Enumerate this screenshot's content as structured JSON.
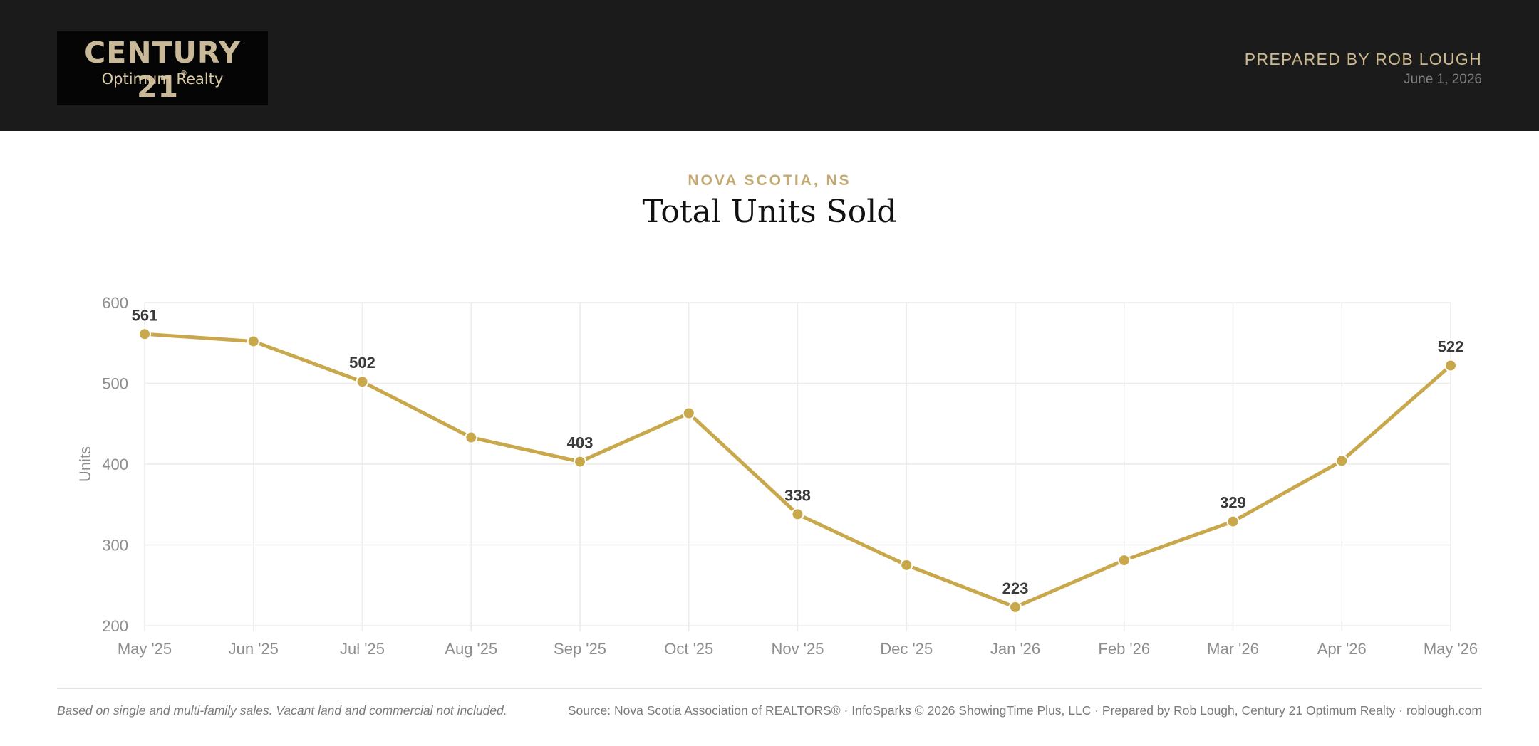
{
  "header": {
    "logo_brand": "CENTURY 21",
    "logo_reg": "®",
    "logo_sub": "Optimum Realty",
    "prepared_by": "PREPARED BY ROB LOUGH",
    "date": "June 1, 2026"
  },
  "region": "NOVA SCOTIA, NS",
  "title": "Total Units Sold",
  "colors": {
    "header_bg": "#1b1b1b",
    "accent": "#c9a84c",
    "gold_text": "#cdb98c"
  },
  "chart_data": {
    "type": "line",
    "title": "Total Units Sold",
    "ylabel": "Units",
    "xlabel": "",
    "ylim": [
      200,
      600
    ],
    "yticks": [
      "600",
      "500",
      "400",
      "300",
      "200"
    ],
    "grid": true,
    "categories": [
      "May '25",
      "Jun '25",
      "Jul '25",
      "Aug '25",
      "Sep '25",
      "Oct '25",
      "Nov '25",
      "Dec '25",
      "Jan '26",
      "Feb '26",
      "Mar '26",
      "Apr '26",
      "May '26"
    ],
    "series": [
      {
        "values": [
          561,
          552,
          502,
          433,
          403,
          463,
          338,
          275,
          223,
          281,
          329,
          404,
          522
        ],
        "labels": [
          "561",
          "",
          "502",
          "",
          "403",
          "",
          "338",
          "",
          "223",
          "",
          "329",
          "",
          "522"
        ]
      }
    ]
  },
  "footer": {
    "note": "Based on single and multi-family sales. Vacant land and commercial not included.",
    "source": "Source: Nova Scotia Association of REALTORS® · InfoSparks © 2026 ShowingTime Plus, LLC · Prepared by Rob Lough, Century 21 Optimum Realty · roblough.com"
  }
}
